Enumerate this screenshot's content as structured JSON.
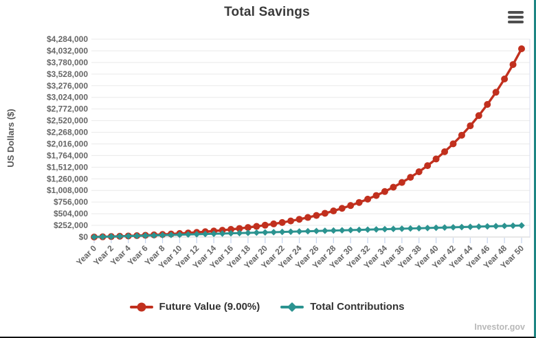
{
  "header": {
    "menu_icon": "hamburger-icon"
  },
  "watermark": {
    "text": "Investor.gov"
  },
  "colors": {
    "future_value": "#c1301e",
    "contributions": "#2b9390",
    "grid": "#e9e9e9",
    "baseline": "#cfcfcf",
    "axis_tick": "#c9d6ee",
    "right_border": "#d7ddf0",
    "tick_label": "#666666",
    "axis_title": "#585858"
  },
  "chart_data": {
    "type": "line",
    "title": "Total Savings",
    "xlabel": "",
    "ylabel": "US Dollars ($)",
    "ylim": [
      0,
      4284000
    ],
    "grid": "horizontal",
    "legend_position": "bottom",
    "years": [
      0,
      1,
      2,
      3,
      4,
      5,
      6,
      7,
      8,
      9,
      10,
      11,
      12,
      13,
      14,
      15,
      16,
      17,
      18,
      19,
      20,
      21,
      22,
      23,
      24,
      25,
      26,
      27,
      28,
      29,
      30,
      31,
      32,
      33,
      34,
      35,
      36,
      37,
      38,
      39,
      40,
      41,
      42,
      43,
      44,
      45,
      46,
      47,
      48,
      49,
      50
    ],
    "x_tick_step": 2,
    "x_tick_labels": [
      "Year 0",
      "Year 2",
      "Year 4",
      "Year 6",
      "Year 8",
      "Year 10",
      "Year 12",
      "Year 14",
      "Year 16",
      "Year 18",
      "Year 20",
      "Year 22",
      "Year 24",
      "Year 26",
      "Year 28",
      "Year 30",
      "Year 32",
      "Year 34",
      "Year 36",
      "Year 38",
      "Year 40",
      "Year 42",
      "Year 44",
      "Year 46",
      "Year 48",
      "Year 50"
    ],
    "y_tick_values": [
      0,
      252000,
      504000,
      756000,
      1008000,
      1260000,
      1512000,
      1764000,
      2016000,
      2268000,
      2520000,
      2772000,
      3024000,
      3276000,
      3528000,
      3780000,
      4032000,
      4284000
    ],
    "y_tick_labels": [
      "$0",
      "$252,000",
      "$504,000",
      "$756,000",
      "$1,008,000",
      "$1,260,000",
      "$1,512,000",
      "$1,764,000",
      "$2,016,000",
      "$2,268,000",
      "$2,520,000",
      "$2,772,000",
      "$3,024,000",
      "$3,276,000",
      "$3,528,000",
      "$3,780,000",
      "$4,032,000",
      "$4,284,000"
    ],
    "series": [
      {
        "name": "Future Value (9.00%)",
        "color": "#c1301e",
        "marker": "circle",
        "values": [
          0,
          5000,
          10450,
          16391,
          22866,
          29924,
          37617,
          46002,
          55142,
          65105,
          75965,
          87802,
          100704,
          114767,
          130096,
          146805,
          165017,
          184869,
          206507,
          230092,
          255801,
          283823,
          314367,
          347660,
          383949,
          423505,
          466620,
          513616,
          564841,
          620677,
          681538,
          747876,
          820185,
          899002,
          984912,
          1078554,
          1180624,
          1291880,
          1413149,
          1545332,
          1689412,
          1846459,
          2017641,
          2204228,
          2407609,
          2629294,
          2870930,
          3134314,
          3421402,
          3734328,
          4075418
        ]
      },
      {
        "name": "Total Contributions",
        "color": "#2b9390",
        "marker": "diamond",
        "values": [
          0,
          5000,
          10000,
          15000,
          20000,
          25000,
          30000,
          35000,
          40000,
          45000,
          50000,
          55000,
          60000,
          65000,
          70000,
          75000,
          80000,
          85000,
          90000,
          95000,
          100000,
          105000,
          110000,
          115000,
          120000,
          125000,
          130000,
          135000,
          140000,
          145000,
          150000,
          155000,
          160000,
          165000,
          170000,
          175000,
          180000,
          185000,
          190000,
          195000,
          200000,
          205000,
          210000,
          215000,
          220000,
          225000,
          230000,
          235000,
          240000,
          245000,
          250000
        ]
      }
    ]
  }
}
